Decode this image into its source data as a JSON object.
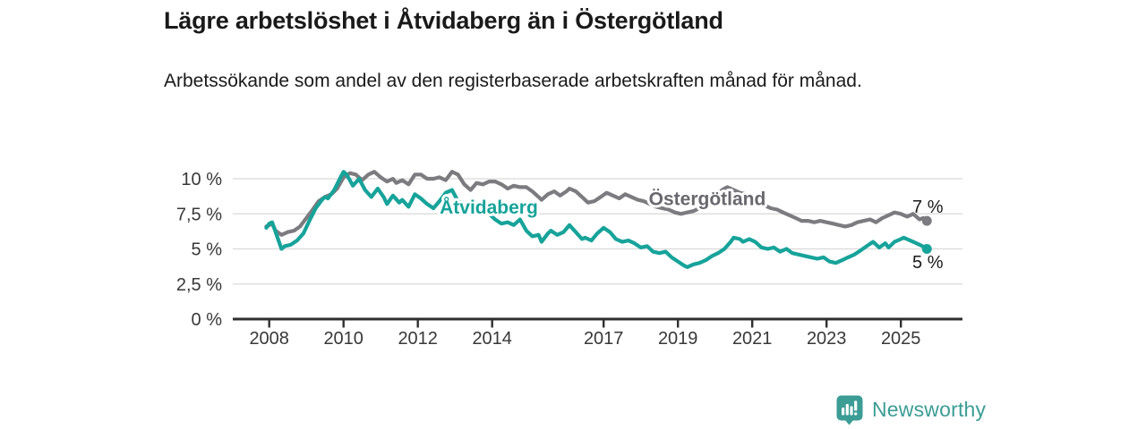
{
  "header": {
    "title": "Lägre arbetslöshet i Åtvidaberg än i Östergötland",
    "subtitle": "Arbetssökande som andel av den registerbaserade arbetskraften månad för månad."
  },
  "branding": {
    "logo_text": "Newsworthy",
    "logo_icon": "bar-chart-speech-bubble-icon",
    "logo_color": "#3b9d95"
  },
  "colors": {
    "atvidaberg_line": "#16a39a",
    "ostergotland_line": "#7c7c80",
    "ostergotland_label": "#68686d",
    "axis": "#2f2f2f",
    "grid": "#d9d9d9",
    "tick_text": "#383838",
    "value_label_text": "#1a1a1a",
    "background": "#ffffff"
  },
  "chart_data": {
    "type": "line",
    "title": "Lägre arbetslöshet i Åtvidaberg än i Östergötland",
    "subtitle": "Arbetssökande som andel av den registerbaserade arbetskraften månad för månad.",
    "xlabel": "",
    "ylabel": "%",
    "x_axis": {
      "ticks": [
        2008,
        2010,
        2012,
        2014,
        2017,
        2019,
        2021,
        2023,
        2025
      ],
      "range": [
        2007.0,
        2026.6
      ]
    },
    "y_axis": {
      "unit": "%",
      "range": [
        0,
        11
      ],
      "ticks": [
        {
          "value": 0,
          "label": "0 %"
        },
        {
          "value": 2.5,
          "label": "2,5 %"
        },
        {
          "value": 5,
          "label": "5 %"
        },
        {
          "value": 7.5,
          "label": "7,5 %"
        },
        {
          "value": 10,
          "label": "10 %"
        }
      ]
    },
    "grid": true,
    "legend_position": "inline-labels",
    "series": [
      {
        "name": "Östergötland",
        "color": "#7c7c80",
        "label_color": "#68686d",
        "label_at": {
          "year": 2019.79,
          "value": 8.6
        },
        "end_label": "7 %",
        "end_label_side": "above",
        "end_value": 7.0,
        "points": [
          [
            2007.92,
            6.6
          ],
          [
            2008.0,
            6.7
          ],
          [
            2008.08,
            6.8
          ],
          [
            2008.17,
            6.3
          ],
          [
            2008.33,
            6.0
          ],
          [
            2008.5,
            6.2
          ],
          [
            2008.67,
            6.3
          ],
          [
            2008.83,
            6.6
          ],
          [
            2009.0,
            7.2
          ],
          [
            2009.17,
            7.8
          ],
          [
            2009.33,
            8.4
          ],
          [
            2009.5,
            8.7
          ],
          [
            2009.67,
            8.9
          ],
          [
            2009.83,
            9.3
          ],
          [
            2010.0,
            10.1
          ],
          [
            2010.17,
            10.4
          ],
          [
            2010.33,
            10.3
          ],
          [
            2010.5,
            9.9
          ],
          [
            2010.67,
            10.3
          ],
          [
            2010.83,
            10.5
          ],
          [
            2011.0,
            10.1
          ],
          [
            2011.17,
            9.8
          ],
          [
            2011.33,
            10.0
          ],
          [
            2011.42,
            9.7
          ],
          [
            2011.58,
            9.9
          ],
          [
            2011.75,
            9.6
          ],
          [
            2011.92,
            10.3
          ],
          [
            2012.08,
            10.3
          ],
          [
            2012.25,
            10.0
          ],
          [
            2012.42,
            10.0
          ],
          [
            2012.58,
            10.1
          ],
          [
            2012.75,
            9.9
          ],
          [
            2012.92,
            10.5
          ],
          [
            2013.08,
            10.3
          ],
          [
            2013.25,
            9.6
          ],
          [
            2013.42,
            9.2
          ],
          [
            2013.58,
            9.7
          ],
          [
            2013.75,
            9.6
          ],
          [
            2013.92,
            9.8
          ],
          [
            2014.08,
            9.8
          ],
          [
            2014.25,
            9.6
          ],
          [
            2014.42,
            9.3
          ],
          [
            2014.58,
            9.5
          ],
          [
            2014.75,
            9.4
          ],
          [
            2014.92,
            9.4
          ],
          [
            2015.08,
            9.1
          ],
          [
            2015.25,
            8.7
          ],
          [
            2015.33,
            8.5
          ],
          [
            2015.5,
            8.9
          ],
          [
            2015.67,
            9.1
          ],
          [
            2015.83,
            8.8
          ],
          [
            2016.0,
            9.1
          ],
          [
            2016.08,
            9.3
          ],
          [
            2016.25,
            9.1
          ],
          [
            2016.42,
            8.7
          ],
          [
            2016.58,
            8.3
          ],
          [
            2016.75,
            8.4
          ],
          [
            2016.92,
            8.7
          ],
          [
            2017.08,
            9.0
          ],
          [
            2017.25,
            8.8
          ],
          [
            2017.42,
            8.6
          ],
          [
            2017.58,
            8.9
          ],
          [
            2017.75,
            8.7
          ],
          [
            2017.92,
            8.5
          ],
          [
            2018.08,
            8.4
          ],
          [
            2018.25,
            8.2
          ],
          [
            2018.42,
            8.0
          ],
          [
            2018.58,
            7.9
          ],
          [
            2018.75,
            7.8
          ],
          [
            2018.92,
            7.6
          ],
          [
            2019.08,
            7.5
          ],
          [
            2019.25,
            7.6
          ],
          [
            2019.42,
            7.7
          ],
          [
            2019.58,
            7.9
          ],
          [
            2019.75,
            8.2
          ],
          [
            2019.92,
            8.6
          ],
          [
            2020.08,
            9.0
          ],
          [
            2020.25,
            9.3
          ],
          [
            2020.33,
            9.4
          ],
          [
            2020.5,
            9.2
          ],
          [
            2020.67,
            9.0
          ],
          [
            2020.83,
            8.9
          ],
          [
            2021.0,
            8.7
          ],
          [
            2021.17,
            8.4
          ],
          [
            2021.33,
            8.1
          ],
          [
            2021.5,
            7.9
          ],
          [
            2021.67,
            7.8
          ],
          [
            2021.83,
            7.6
          ],
          [
            2022.0,
            7.4
          ],
          [
            2022.17,
            7.2
          ],
          [
            2022.33,
            7.0
          ],
          [
            2022.5,
            7.0
          ],
          [
            2022.67,
            6.9
          ],
          [
            2022.83,
            7.0
          ],
          [
            2023.0,
            6.9
          ],
          [
            2023.17,
            6.8
          ],
          [
            2023.33,
            6.7
          ],
          [
            2023.5,
            6.6
          ],
          [
            2023.67,
            6.7
          ],
          [
            2023.83,
            6.9
          ],
          [
            2024.0,
            7.0
          ],
          [
            2024.17,
            7.1
          ],
          [
            2024.33,
            6.9
          ],
          [
            2024.5,
            7.2
          ],
          [
            2024.67,
            7.4
          ],
          [
            2024.83,
            7.6
          ],
          [
            2025.0,
            7.5
          ],
          [
            2025.17,
            7.3
          ],
          [
            2025.33,
            7.5
          ],
          [
            2025.5,
            7.1
          ],
          [
            2025.6,
            7.2
          ],
          [
            2025.7,
            7.0
          ]
        ]
      },
      {
        "name": "Åtvidaberg",
        "color": "#16a39a",
        "label_color": "#16a39a",
        "label_at": {
          "year": 2013.91,
          "value": 8.0
        },
        "end_label": "5 %",
        "end_label_side": "below",
        "end_value": 5.0,
        "points": [
          [
            2007.92,
            6.5
          ],
          [
            2008.0,
            6.8
          ],
          [
            2008.08,
            6.9
          ],
          [
            2008.17,
            6.2
          ],
          [
            2008.33,
            5.0
          ],
          [
            2008.42,
            5.2
          ],
          [
            2008.58,
            5.3
          ],
          [
            2008.75,
            5.6
          ],
          [
            2008.92,
            6.1
          ],
          [
            2009.08,
            7.0
          ],
          [
            2009.25,
            7.9
          ],
          [
            2009.42,
            8.5
          ],
          [
            2009.5,
            8.7
          ],
          [
            2009.58,
            8.6
          ],
          [
            2009.75,
            9.2
          ],
          [
            2009.92,
            10.1
          ],
          [
            2010.0,
            10.5
          ],
          [
            2010.08,
            10.3
          ],
          [
            2010.17,
            9.9
          ],
          [
            2010.25,
            9.5
          ],
          [
            2010.42,
            10.0
          ],
          [
            2010.58,
            9.2
          ],
          [
            2010.75,
            8.7
          ],
          [
            2010.92,
            9.3
          ],
          [
            2011.08,
            8.7
          ],
          [
            2011.17,
            8.2
          ],
          [
            2011.33,
            8.8
          ],
          [
            2011.5,
            8.3
          ],
          [
            2011.58,
            8.5
          ],
          [
            2011.75,
            8.0
          ],
          [
            2011.92,
            8.9
          ],
          [
            2012.08,
            8.6
          ],
          [
            2012.25,
            8.2
          ],
          [
            2012.42,
            7.9
          ],
          [
            2012.58,
            8.4
          ],
          [
            2012.75,
            9.0
          ],
          [
            2012.92,
            9.2
          ],
          [
            2013.08,
            8.4
          ],
          [
            2013.25,
            8.2
          ],
          [
            2013.42,
            8.3
          ],
          [
            2013.58,
            8.1
          ],
          [
            2013.75,
            7.9
          ],
          [
            2013.92,
            7.5
          ],
          [
            2014.08,
            7.1
          ],
          [
            2014.25,
            6.8
          ],
          [
            2014.42,
            6.9
          ],
          [
            2014.58,
            6.7
          ],
          [
            2014.75,
            7.1
          ],
          [
            2014.92,
            6.3
          ],
          [
            2015.08,
            5.9
          ],
          [
            2015.25,
            6.0
          ],
          [
            2015.33,
            5.5
          ],
          [
            2015.5,
            6.1
          ],
          [
            2015.58,
            6.3
          ],
          [
            2015.75,
            6.0
          ],
          [
            2015.92,
            6.2
          ],
          [
            2016.08,
            6.7
          ],
          [
            2016.25,
            6.2
          ],
          [
            2016.42,
            5.7
          ],
          [
            2016.5,
            5.8
          ],
          [
            2016.67,
            5.6
          ],
          [
            2016.83,
            6.1
          ],
          [
            2017.0,
            6.5
          ],
          [
            2017.17,
            6.2
          ],
          [
            2017.33,
            5.7
          ],
          [
            2017.5,
            5.5
          ],
          [
            2017.67,
            5.6
          ],
          [
            2017.83,
            5.4
          ],
          [
            2018.0,
            5.1
          ],
          [
            2018.17,
            5.2
          ],
          [
            2018.33,
            4.8
          ],
          [
            2018.5,
            4.7
          ],
          [
            2018.67,
            4.8
          ],
          [
            2018.83,
            4.4
          ],
          [
            2019.0,
            4.1
          ],
          [
            2019.17,
            3.8
          ],
          [
            2019.25,
            3.7
          ],
          [
            2019.42,
            3.9
          ],
          [
            2019.58,
            4.0
          ],
          [
            2019.75,
            4.2
          ],
          [
            2019.92,
            4.5
          ],
          [
            2020.08,
            4.7
          ],
          [
            2020.25,
            5.0
          ],
          [
            2020.42,
            5.5
          ],
          [
            2020.5,
            5.8
          ],
          [
            2020.67,
            5.7
          ],
          [
            2020.75,
            5.5
          ],
          [
            2020.92,
            5.7
          ],
          [
            2021.08,
            5.5
          ],
          [
            2021.25,
            5.1
          ],
          [
            2021.42,
            5.0
          ],
          [
            2021.58,
            5.1
          ],
          [
            2021.75,
            4.8
          ],
          [
            2021.92,
            5.0
          ],
          [
            2022.08,
            4.7
          ],
          [
            2022.25,
            4.6
          ],
          [
            2022.42,
            4.5
          ],
          [
            2022.58,
            4.4
          ],
          [
            2022.75,
            4.3
          ],
          [
            2022.92,
            4.4
          ],
          [
            2023.08,
            4.1
          ],
          [
            2023.25,
            4.0
          ],
          [
            2023.42,
            4.2
          ],
          [
            2023.58,
            4.4
          ],
          [
            2023.75,
            4.6
          ],
          [
            2023.92,
            4.9
          ],
          [
            2024.08,
            5.2
          ],
          [
            2024.25,
            5.5
          ],
          [
            2024.42,
            5.1
          ],
          [
            2024.58,
            5.4
          ],
          [
            2024.67,
            5.1
          ],
          [
            2024.83,
            5.5
          ],
          [
            2025.0,
            5.7
          ],
          [
            2025.08,
            5.8
          ],
          [
            2025.25,
            5.6
          ],
          [
            2025.42,
            5.4
          ],
          [
            2025.58,
            5.2
          ],
          [
            2025.7,
            5.0
          ]
        ]
      }
    ]
  }
}
